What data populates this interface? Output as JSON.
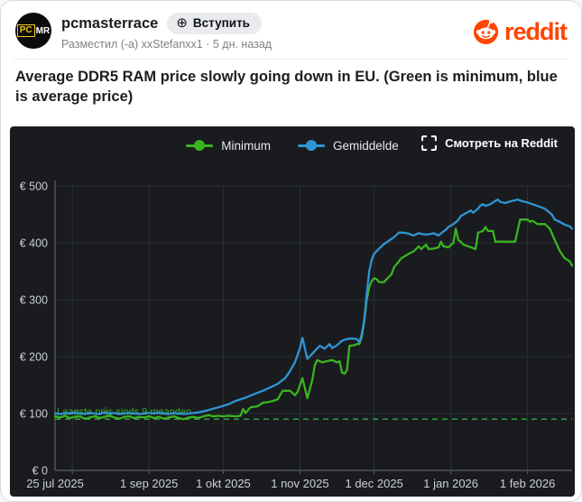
{
  "header": {
    "community": "pcmasterrace",
    "join_label": "Вступить",
    "byline": "Разместил (-а) xxStefanxx1 · 5 дн. назад",
    "brand": "reddit"
  },
  "avatar": {
    "pc": "PC",
    "mr": "MR"
  },
  "post": {
    "title": "Average DDR5 RAM price slowly going down in EU. (Green is minimum, blue is average price)",
    "watch_label": "Смотреть на Reddit"
  },
  "colors": {
    "brand_orange": "#FF4500",
    "panel_bg": "#191b1f",
    "grid": "#2c3036",
    "axis": "#595d62",
    "tick_text": "#ced1d3",
    "green": "#3ab320",
    "blue": "#3094d4",
    "ref_green": "#2f9e44"
  },
  "chart_data": {
    "type": "line",
    "currency": "EUR",
    "x_unit": "days since 25 jul 2025",
    "xlim": [
      0,
      209
    ],
    "ylim": [
      0,
      500
    ],
    "grid": true,
    "legend_position": "top-center",
    "y_ticks": [
      {
        "value": 0,
        "label": "€ 0"
      },
      {
        "value": 100,
        "label": "€ 100"
      },
      {
        "value": 200,
        "label": "€ 200"
      },
      {
        "value": 300,
        "label": "€ 300"
      },
      {
        "value": 400,
        "label": "€ 400"
      },
      {
        "value": 500,
        "label": "€ 500"
      }
    ],
    "x_ticks": [
      {
        "day": 0,
        "label": "25 jul 2025"
      },
      {
        "day": 38,
        "label": "1 sep 2025"
      },
      {
        "day": 68,
        "label": "1 okt 2025"
      },
      {
        "day": 99,
        "label": "1 nov 2025"
      },
      {
        "day": 129,
        "label": "1 dec 2025"
      },
      {
        "day": 160,
        "label": "1 jan 2026"
      },
      {
        "day": 191,
        "label": "1 feb 2026"
      }
    ],
    "month_gridline_days": [
      7,
      38,
      68,
      99,
      129,
      160,
      191
    ],
    "reference_line": {
      "value": 90,
      "label": "Laagste prijs sinds 9 maanden",
      "style": "dashed",
      "color": "#2f9e44"
    },
    "series": [
      {
        "name": "Minimum",
        "color": "#3ab320",
        "points": [
          [
            0,
            95
          ],
          [
            2,
            93
          ],
          [
            4,
            96
          ],
          [
            6,
            92
          ],
          [
            8,
            94
          ],
          [
            10,
            95
          ],
          [
            12,
            91
          ],
          [
            14,
            93
          ],
          [
            16,
            95
          ],
          [
            18,
            92
          ],
          [
            20,
            94
          ],
          [
            22,
            96
          ],
          [
            24,
            93
          ],
          [
            26,
            91
          ],
          [
            28,
            94
          ],
          [
            30,
            95
          ],
          [
            32,
            92
          ],
          [
            34,
            94
          ],
          [
            36,
            93
          ],
          [
            38,
            95
          ],
          [
            40,
            92
          ],
          [
            42,
            94
          ],
          [
            44,
            91
          ],
          [
            46,
            93
          ],
          [
            48,
            95
          ],
          [
            50,
            92
          ],
          [
            52,
            90
          ],
          [
            54,
            93
          ],
          [
            56,
            94
          ],
          [
            58,
            92
          ],
          [
            60,
            95
          ],
          [
            62,
            97
          ],
          [
            64,
            95
          ],
          [
            66,
            96
          ],
          [
            68,
            95
          ],
          [
            70,
            96
          ],
          [
            73,
            95
          ],
          [
            75,
            96
          ],
          [
            76,
            108
          ],
          [
            77,
            101
          ],
          [
            79,
            111
          ],
          [
            81,
            112
          ],
          [
            82,
            113
          ],
          [
            84,
            119
          ],
          [
            86,
            120
          ],
          [
            88,
            122
          ],
          [
            90,
            125
          ],
          [
            92,
            140
          ],
          [
            94,
            140
          ],
          [
            95,
            140
          ],
          [
            97,
            132
          ],
          [
            98,
            138
          ],
          [
            100,
            162
          ],
          [
            102,
            127
          ],
          [
            104,
            159
          ],
          [
            105,
            185
          ],
          [
            106,
            194
          ],
          [
            108,
            190
          ],
          [
            110,
            192
          ],
          [
            112,
            194
          ],
          [
            114,
            190
          ],
          [
            115,
            192
          ],
          [
            116,
            172
          ],
          [
            117,
            170
          ],
          [
            118,
            176
          ],
          [
            119,
            219
          ],
          [
            121,
            220
          ],
          [
            122,
            222
          ],
          [
            123,
            222
          ],
          [
            124,
            235
          ],
          [
            125,
            262
          ],
          [
            126,
            300
          ],
          [
            127,
            322
          ],
          [
            128,
            333
          ],
          [
            129,
            338
          ],
          [
            130,
            336
          ],
          [
            131,
            331
          ],
          [
            133,
            331
          ],
          [
            134,
            336
          ],
          [
            136,
            345
          ],
          [
            137,
            357
          ],
          [
            138,
            362
          ],
          [
            140,
            373
          ],
          [
            143,
            381
          ],
          [
            145,
            385
          ],
          [
            147,
            394
          ],
          [
            148,
            389
          ],
          [
            150,
            397
          ],
          [
            151,
            389
          ],
          [
            153,
            390
          ],
          [
            155,
            392
          ],
          [
            156,
            402
          ],
          [
            157,
            394
          ],
          [
            159,
            392
          ],
          [
            161,
            400
          ],
          [
            162,
            425
          ],
          [
            163,
            405
          ],
          [
            164,
            402
          ],
          [
            165,
            397
          ],
          [
            167,
            394
          ],
          [
            170,
            389
          ],
          [
            171,
            418
          ],
          [
            173,
            421
          ],
          [
            174,
            428
          ],
          [
            175,
            421
          ],
          [
            177,
            421
          ],
          [
            178,
            402
          ],
          [
            180,
            402
          ],
          [
            183,
            402
          ],
          [
            186,
            402
          ],
          [
            188,
            441
          ],
          [
            191,
            441
          ],
          [
            192,
            437
          ],
          [
            193,
            439
          ],
          [
            195,
            433
          ],
          [
            198,
            433
          ],
          [
            200,
            425
          ],
          [
            201,
            415
          ],
          [
            202,
            405
          ],
          [
            204,
            386
          ],
          [
            206,
            373
          ],
          [
            208,
            368
          ],
          [
            209,
            360
          ]
        ]
      },
      {
        "name": "Gemiddelde",
        "color": "#3094d4",
        "points": [
          [
            0,
            100
          ],
          [
            2,
            99
          ],
          [
            4,
            101
          ],
          [
            6,
            100
          ],
          [
            8,
            102
          ],
          [
            10,
            100
          ],
          [
            12,
            99
          ],
          [
            14,
            101
          ],
          [
            16,
            100
          ],
          [
            18,
            99
          ],
          [
            20,
            102
          ],
          [
            22,
            100
          ],
          [
            24,
            101
          ],
          [
            26,
            99
          ],
          [
            28,
            100
          ],
          [
            30,
            101
          ],
          [
            32,
            100
          ],
          [
            34,
            99
          ],
          [
            36,
            100
          ],
          [
            38,
            101
          ],
          [
            40,
            100
          ],
          [
            42,
            102
          ],
          [
            44,
            100
          ],
          [
            46,
            99
          ],
          [
            48,
            101
          ],
          [
            50,
            100
          ],
          [
            52,
            99
          ],
          [
            54,
            100
          ],
          [
            56,
            101
          ],
          [
            58,
            102
          ],
          [
            60,
            104
          ],
          [
            62,
            106
          ],
          [
            66,
            111
          ],
          [
            70,
            116
          ],
          [
            73,
            122
          ],
          [
            77,
            128
          ],
          [
            81,
            135
          ],
          [
            84,
            140
          ],
          [
            88,
            148
          ],
          [
            90,
            152
          ],
          [
            92,
            159
          ],
          [
            93,
            162
          ],
          [
            95,
            175
          ],
          [
            97,
            190
          ],
          [
            99,
            215
          ],
          [
            100,
            233
          ],
          [
            102,
            196
          ],
          [
            104,
            205
          ],
          [
            105,
            210
          ],
          [
            107,
            219
          ],
          [
            109,
            214
          ],
          [
            111,
            222
          ],
          [
            112,
            215
          ],
          [
            114,
            220
          ],
          [
            116,
            228
          ],
          [
            118,
            231
          ],
          [
            120,
            232
          ],
          [
            122,
            231
          ],
          [
            123,
            225
          ],
          [
            124,
            240
          ],
          [
            125,
            265
          ],
          [
            126,
            310
          ],
          [
            127,
            350
          ],
          [
            128,
            370
          ],
          [
            129,
            381
          ],
          [
            131,
            390
          ],
          [
            133,
            398
          ],
          [
            135,
            404
          ],
          [
            137,
            410
          ],
          [
            139,
            418
          ],
          [
            141,
            418
          ],
          [
            143,
            416
          ],
          [
            145,
            413
          ],
          [
            147,
            417
          ],
          [
            149,
            415
          ],
          [
            151,
            415
          ],
          [
            153,
            417
          ],
          [
            155,
            413
          ],
          [
            157,
            420
          ],
          [
            158,
            423
          ],
          [
            159,
            428
          ],
          [
            161,
            433
          ],
          [
            163,
            440
          ],
          [
            164,
            447
          ],
          [
            166,
            452
          ],
          [
            168,
            457
          ],
          [
            169,
            453
          ],
          [
            171,
            460
          ],
          [
            172,
            466
          ],
          [
            173,
            468
          ],
          [
            174,
            465
          ],
          [
            176,
            468
          ],
          [
            178,
            474
          ],
          [
            179,
            476
          ],
          [
            180,
            472
          ],
          [
            182,
            470
          ],
          [
            184,
            473
          ],
          [
            186,
            475
          ],
          [
            187,
            476
          ],
          [
            189,
            473
          ],
          [
            191,
            471
          ],
          [
            193,
            468
          ],
          [
            195,
            465
          ],
          [
            198,
            460
          ],
          [
            200,
            453
          ],
          [
            201,
            449
          ],
          [
            202,
            441
          ],
          [
            204,
            437
          ],
          [
            206,
            432
          ],
          [
            208,
            429
          ],
          [
            209,
            425
          ]
        ]
      }
    ]
  }
}
